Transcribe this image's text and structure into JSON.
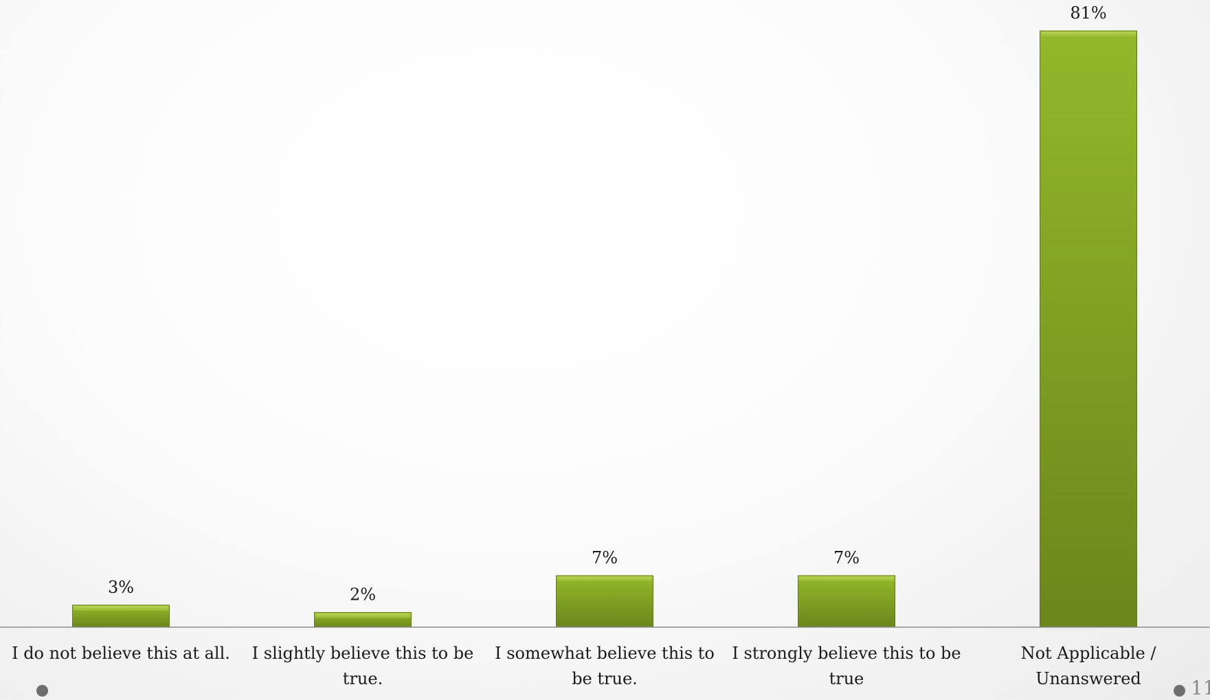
{
  "chart_data": {
    "type": "bar",
    "categories": [
      "I do not believe this at all.",
      "I slightly believe this to be true.",
      "I somewhat believe this to be true.",
      "I strongly believe this to be true",
      "Not Applicable / Unanswered"
    ],
    "values": [
      3,
      2,
      7,
      7,
      81
    ],
    "value_labels": [
      "3%",
      "2%",
      "7%",
      "7%",
      "81%"
    ],
    "title": "",
    "xlabel": "",
    "ylabel": "",
    "ylim": [
      0,
      81
    ],
    "grid": false,
    "legend": "none",
    "bar_color": "#7a9a1e",
    "bar_top_color": "#a2c236"
  },
  "slide": {
    "number": "11"
  }
}
